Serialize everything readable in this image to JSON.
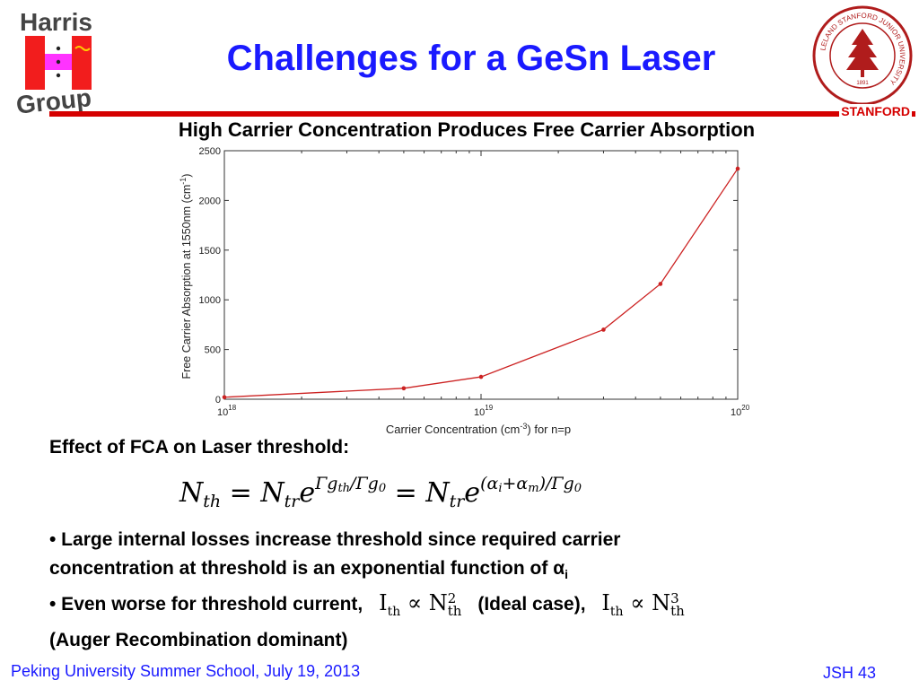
{
  "logo": {
    "line1": "Harris",
    "line2": "Group"
  },
  "title": "Challenges for a GeSn Laser",
  "stanford": "STANFORD",
  "seal": {
    "ring_text": "LELAND STANFORD JUNIOR UNIVERSITY",
    "motto": "DIE LUFT DER FREIHEIT WEHT",
    "year": "1891"
  },
  "subtitle": "High Carrier Concentration Produces Free Carrier Absorption",
  "chart_data": {
    "type": "line",
    "xscale": "log",
    "xlim": [
      1e+18,
      1e+20
    ],
    "ylim": [
      0,
      2500
    ],
    "x": [
      1e+18,
      5e+18,
      1e+19,
      3e+19,
      5e+19,
      1e+20
    ],
    "values": [
      20,
      110,
      225,
      700,
      1160,
      2320
    ],
    "color": "#cc2222",
    "yticks": [
      0,
      500,
      1000,
      1500,
      2000,
      2500
    ],
    "xtick_labels": [
      {
        "base": "10",
        "exp": "18"
      },
      {
        "base": "10",
        "exp": "19"
      },
      {
        "base": "10",
        "exp": "20"
      }
    ],
    "ylabel": {
      "pre": "Free Carrier Absorption at 1550nm (cm",
      "sup": "-1",
      "post": ")"
    },
    "xlabel": {
      "pre": "Carrier Concentration (cm",
      "sup": "-3",
      "post": ") for n=p"
    }
  },
  "fca_heading": "Effect of FCA on Laser threshold:",
  "formula": {
    "N": "N",
    "th": "th",
    "tr": "tr",
    "equals": "=",
    "e": "e",
    "exp1": "Γg",
    "exp1_sub": "th",
    "exp1_tail": "/Γg",
    "exp1_sub2": "0",
    "exp2": "(α",
    "exp2_sub": "i",
    "exp2_mid": "+α",
    "exp2_sub2": "m",
    "exp2_tail": ")/Γg",
    "exp2_sub3": "0"
  },
  "bullets": {
    "b1_line1": "• Large internal losses increase threshold since required carrier",
    "b1_line2": "concentration at threshold is an exponential function of α",
    "b1_sub": "i",
    "b2_start": "• Even worse for threshold current,",
    "b2_mid": "(Ideal case),",
    "b2_end": "(Auger Recombination dominant)",
    "rel_I": "I",
    "rel_sub": "th",
    "rel_prop": "∝",
    "rel_N": "N",
    "rel_pow2": "2",
    "rel_pow3": "3"
  },
  "footer": {
    "left": "Peking University Summer School, July 19, 2013",
    "right": "JSH 43"
  }
}
